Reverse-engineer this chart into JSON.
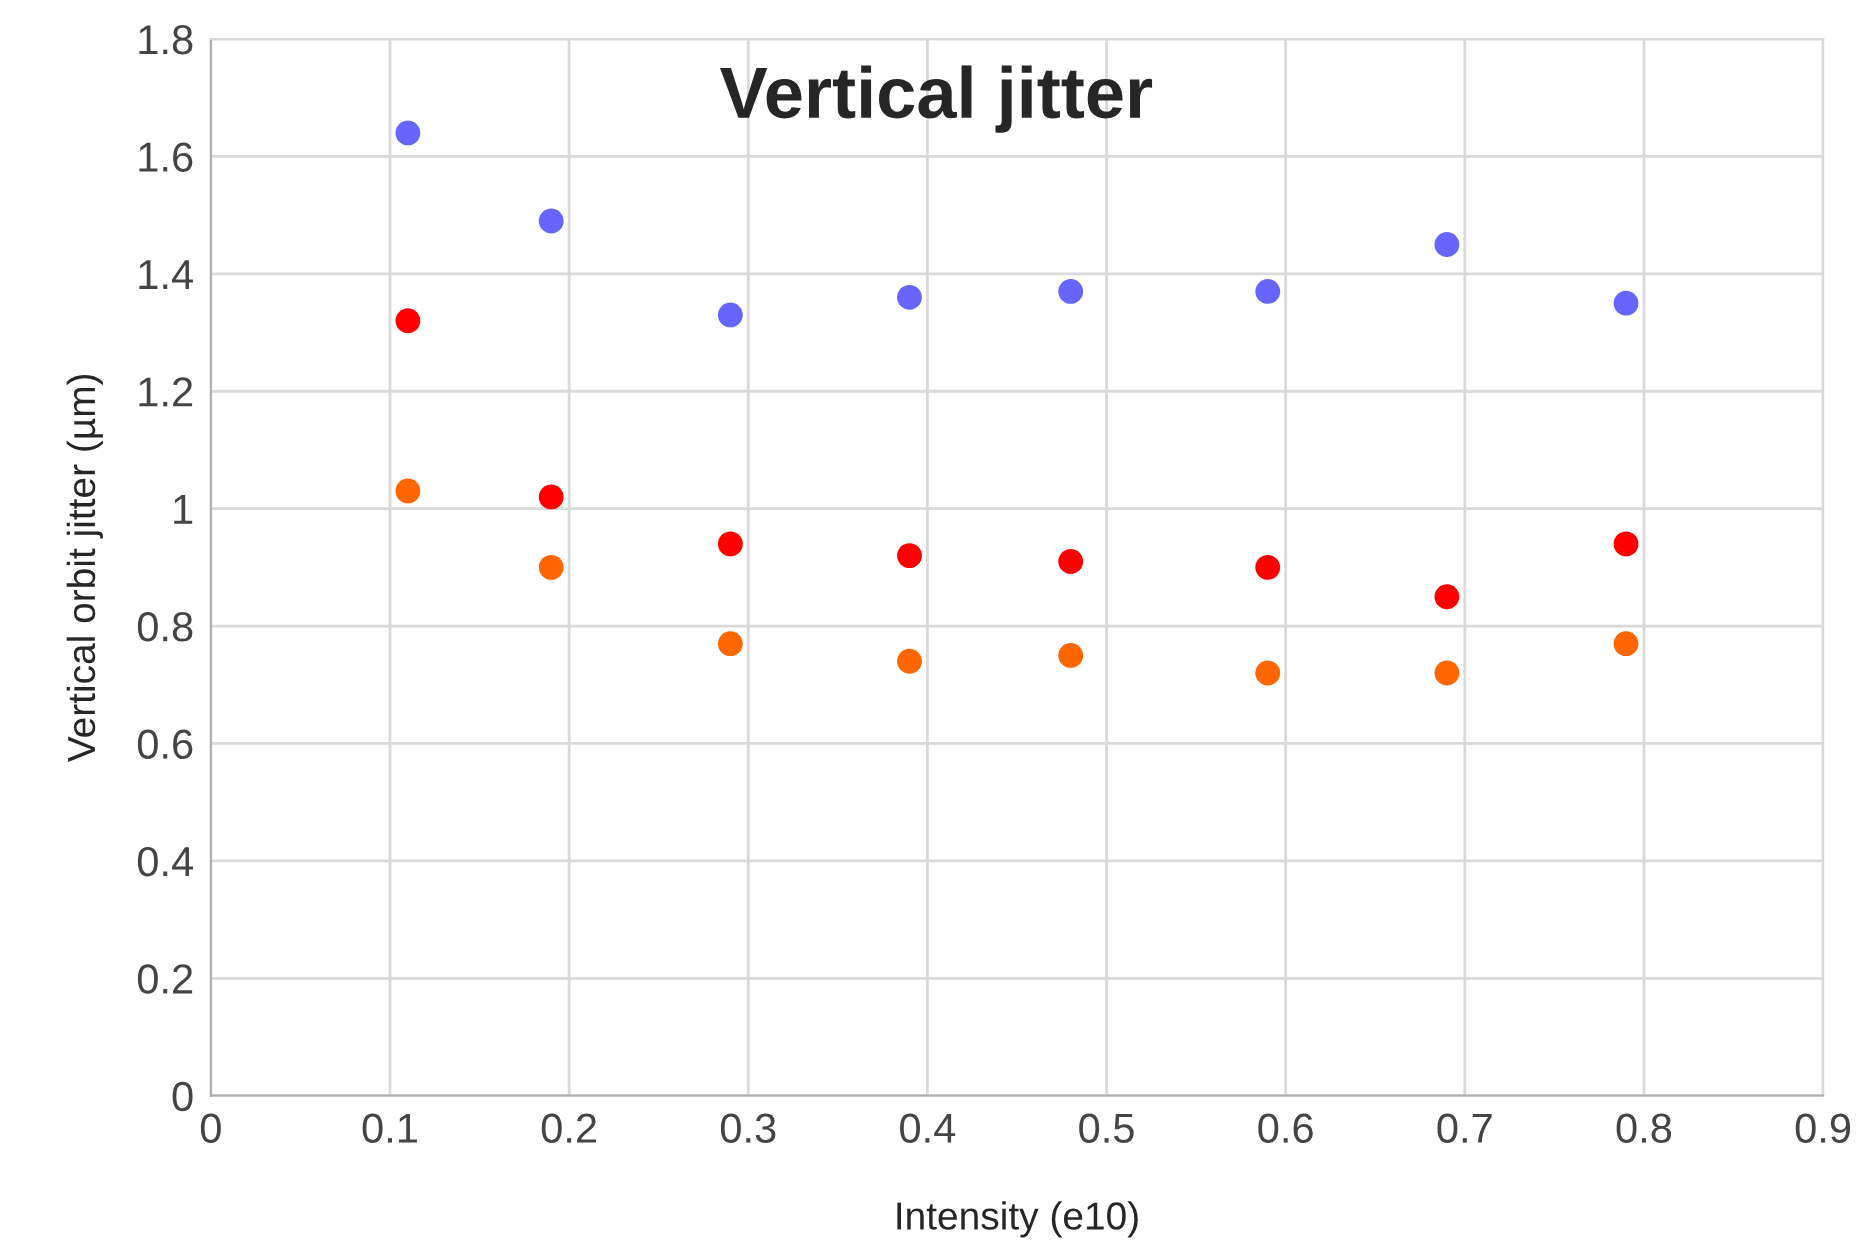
{
  "chart_data": {
    "type": "scatter",
    "title": "Vertical jitter",
    "xlabel": "Intensity (e10)",
    "ylabel": "Vertical orbit jitter (µm)",
    "x": [
      0.11,
      0.19,
      0.29,
      0.39,
      0.48,
      0.59,
      0.69,
      0.79
    ],
    "series": [
      {
        "color": "#6666ff",
        "values": [
          1.64,
          1.49,
          1.33,
          1.36,
          1.37,
          1.37,
          1.45,
          1.35
        ]
      },
      {
        "color": "#ff0000",
        "values": [
          1.32,
          1.02,
          0.94,
          0.92,
          0.91,
          0.9,
          0.85,
          0.94
        ]
      },
      {
        "color": "#ff6600",
        "values": [
          1.03,
          0.9,
          0.77,
          0.74,
          0.75,
          0.72,
          0.72,
          0.77
        ]
      }
    ],
    "xlim": [
      0,
      0.9
    ],
    "xticks": [
      0,
      0.1,
      0.2,
      0.3,
      0.4,
      0.5,
      0.6,
      0.7,
      0.8,
      0.9
    ],
    "ylim": [
      0,
      1.8
    ],
    "yticks": [
      0,
      0.2,
      0.4,
      0.6,
      0.8,
      1,
      1.2,
      1.4,
      1.6,
      1.8
    ],
    "grid": true,
    "marker": "circle"
  }
}
